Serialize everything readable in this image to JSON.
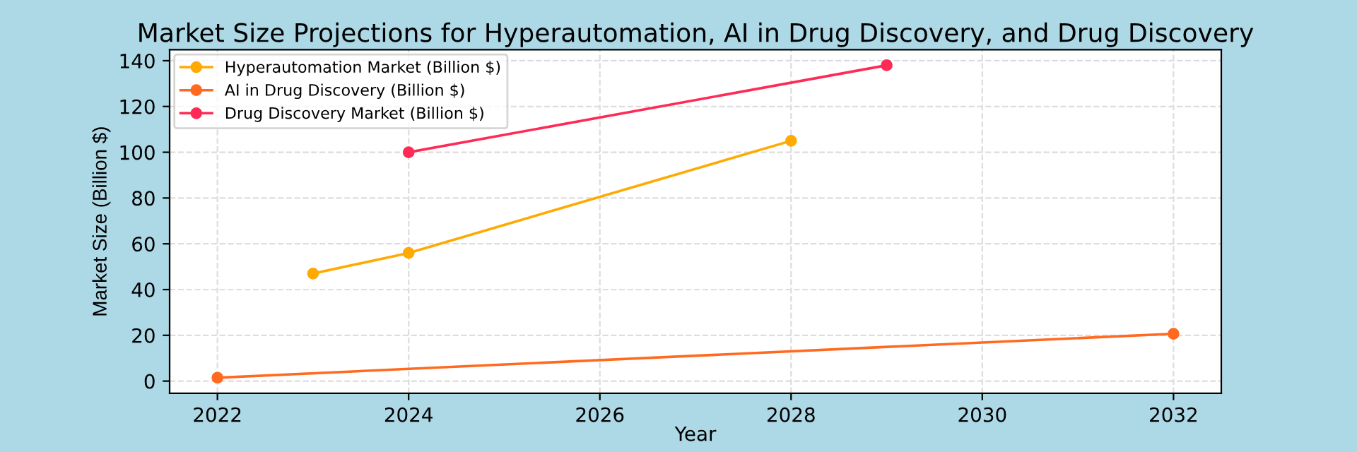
{
  "chart_data": {
    "type": "line",
    "title": "Market Size Projections for Hyperautomation, AI in Drug Discovery, and Drug Discovery",
    "xlabel": "Year",
    "ylabel": "Market Size (Billion $)",
    "series": [
      {
        "name": "Hyperautomation Market (Billion $)",
        "color": "#ffaa00",
        "x": [
          2023,
          2024,
          2028
        ],
        "values": [
          47,
          56,
          105
        ]
      },
      {
        "name": "AI in Drug Discovery (Billion $)",
        "color": "#ff6a20",
        "x": [
          2022,
          2032
        ],
        "values": [
          1.5,
          20.7
        ]
      },
      {
        "name": "Drug Discovery Market (Billion $)",
        "color": "#ff2a55",
        "x": [
          2024,
          2029
        ],
        "values": [
          100,
          138
        ]
      }
    ],
    "xlim": [
      2021.5,
      2032.5
    ],
    "xticks": [
      2022,
      2024,
      2026,
      2028,
      2030,
      2032
    ],
    "ylim": [
      -5.3,
      144.8
    ],
    "yticks": [
      0,
      20,
      40,
      60,
      80,
      100,
      120,
      140
    ],
    "grid": true,
    "legend": "top left",
    "marker": "circle",
    "line_style": "solid"
  }
}
